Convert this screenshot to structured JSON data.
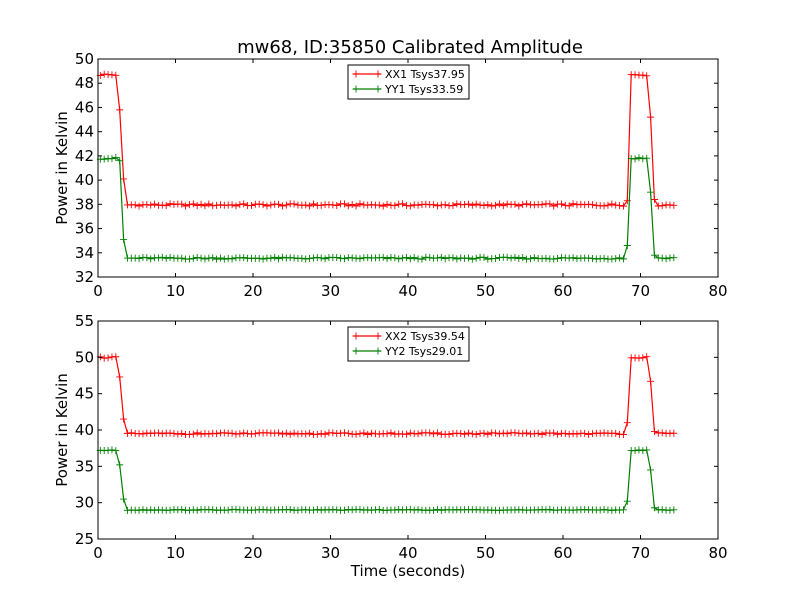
{
  "figure": {
    "title": "mw68, ID:35850 Calibrated Amplitude"
  },
  "chart_data": [
    {
      "type": "line",
      "title": "mw68, ID:35850 Calibrated Amplitude",
      "xlabel": "",
      "ylabel": "Power in Kelvin",
      "xlim": [
        0,
        80
      ],
      "ylim": [
        32,
        50
      ],
      "xticks": [
        0,
        10,
        20,
        30,
        40,
        50,
        60,
        70,
        80
      ],
      "yticks": [
        32,
        34,
        36,
        38,
        40,
        42,
        44,
        46,
        48,
        50
      ],
      "legend_position": "top-center",
      "series": [
        {
          "name": "XX1 Tsys37.95",
          "color": "#ff0000",
          "marker": "+",
          "profile": {
            "t_start": 0.3,
            "t_end": 74.6,
            "dt": 0.5,
            "on_level": 48.7,
            "off_level": 37.95,
            "on_periods": [
              [
                0.3,
                2.3
              ],
              [
                68.8,
                70.8
              ]
            ],
            "transitions": [
              {
                "t": 2.8,
                "v": 45.8
              },
              {
                "t": 3.3,
                "v": 40.1
              },
              {
                "t": 68.3,
                "v": 38.3
              },
              {
                "t": 71.3,
                "v": 45.2
              },
              {
                "t": 71.8,
                "v": 38.4
              }
            ],
            "jitter": 0.1
          }
        },
        {
          "name": "YY1 Tsys33.59",
          "color": "#008000",
          "marker": "+",
          "profile": {
            "t_start": 0.3,
            "t_end": 74.6,
            "dt": 0.5,
            "on_level": 41.8,
            "off_level": 33.55,
            "on_periods": [
              [
                0.3,
                2.3
              ],
              [
                68.8,
                70.8
              ]
            ],
            "transitions": [
              {
                "t": 2.8,
                "v": 41.6
              },
              {
                "t": 3.3,
                "v": 35.1
              },
              {
                "t": 68.3,
                "v": 34.6
              },
              {
                "t": 71.3,
                "v": 39.0
              },
              {
                "t": 71.8,
                "v": 33.8
              }
            ],
            "jitter": 0.08
          }
        }
      ]
    },
    {
      "type": "line",
      "title": "",
      "xlabel": "Time (seconds)",
      "ylabel": "Power in Kelvin",
      "xlim": [
        0,
        80
      ],
      "ylim": [
        25,
        55
      ],
      "xticks": [
        0,
        10,
        20,
        30,
        40,
        50,
        60,
        70,
        80
      ],
      "yticks": [
        25,
        30,
        35,
        40,
        45,
        50,
        55
      ],
      "legend_position": "top-center",
      "series": [
        {
          "name": "XX2 Tsys39.54",
          "color": "#ff0000",
          "marker": "+",
          "profile": {
            "t_start": 0.3,
            "t_end": 74.6,
            "dt": 0.5,
            "on_level": 50.0,
            "off_level": 39.5,
            "on_periods": [
              [
                0.3,
                2.3
              ],
              [
                68.8,
                70.8
              ]
            ],
            "transitions": [
              {
                "t": 2.8,
                "v": 47.3
              },
              {
                "t": 3.3,
                "v": 41.5
              },
              {
                "t": 68.3,
                "v": 41.0
              },
              {
                "t": 71.3,
                "v": 46.7
              },
              {
                "t": 71.8,
                "v": 39.8
              }
            ],
            "jitter": 0.12
          }
        },
        {
          "name": "YY2 Tsys29.01",
          "color": "#008000",
          "marker": "+",
          "profile": {
            "t_start": 0.3,
            "t_end": 74.6,
            "dt": 0.5,
            "on_level": 37.2,
            "off_level": 29.0,
            "on_periods": [
              [
                0.3,
                2.3
              ],
              [
                68.8,
                70.8
              ]
            ],
            "transitions": [
              {
                "t": 2.8,
                "v": 35.2
              },
              {
                "t": 3.3,
                "v": 30.5
              },
              {
                "t": 68.3,
                "v": 30.2
              },
              {
                "t": 71.3,
                "v": 34.5
              },
              {
                "t": 71.8,
                "v": 29.3
              }
            ],
            "jitter": 0.06
          }
        }
      ]
    }
  ]
}
